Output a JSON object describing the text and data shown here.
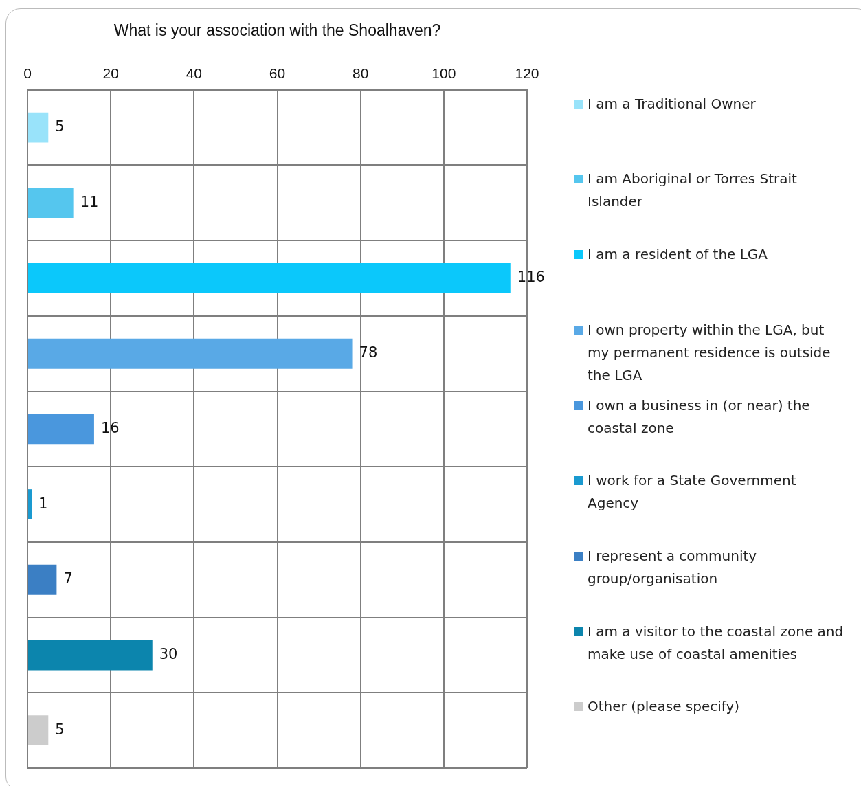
{
  "chart_data": {
    "type": "bar",
    "orientation": "horizontal",
    "title": "What is your association with the Shoalhaven?",
    "categories": [
      null,
      null,
      null,
      null,
      null,
      null,
      null,
      null,
      null
    ],
    "series": [
      {
        "name": "I am a Traditional Owner",
        "color": "#99e3fa",
        "values": [
          5,
          null,
          null,
          null,
          null,
          null,
          null,
          null,
          null
        ]
      },
      {
        "name": "I am Aboriginal or Torres Strait Islander",
        "color": "#55c6ee",
        "values": [
          null,
          11,
          null,
          null,
          null,
          null,
          null,
          null,
          null
        ]
      },
      {
        "name": "I am a resident of the LGA",
        "color": "#0bc8fb",
        "values": [
          null,
          null,
          116,
          null,
          null,
          null,
          null,
          null,
          null
        ]
      },
      {
        "name": "I own property within the LGA, but my permanent residence is outside the LGA",
        "color": "#59a9e6",
        "values": [
          null,
          null,
          null,
          78,
          null,
          null,
          null,
          null,
          null
        ]
      },
      {
        "name": "I own a business in (or near) the coastal zone",
        "color": "#4a97dd",
        "values": [
          null,
          null,
          null,
          null,
          16,
          null,
          null,
          null,
          null
        ]
      },
      {
        "name": "I work for a State Government Agency",
        "color": "#1a9ad0",
        "values": [
          null,
          null,
          null,
          null,
          null,
          1,
          null,
          null,
          null
        ]
      },
      {
        "name": "I represent a community group/organisation",
        "color": "#3b7fc4",
        "values": [
          null,
          null,
          null,
          null,
          null,
          null,
          7,
          null,
          null
        ]
      },
      {
        "name": "I am a visitor to the coastal zone and make use of coastal amenities",
        "color": "#0c85ad",
        "values": [
          null,
          null,
          null,
          null,
          null,
          null,
          null,
          30,
          null
        ]
      },
      {
        "name": "Other (please specify)",
        "color": "#cccccc",
        "values": [
          null,
          null,
          null,
          null,
          null,
          null,
          null,
          null,
          5
        ]
      }
    ],
    "xlim": [
      0,
      120
    ],
    "xticks": [
      0,
      20,
      40,
      60,
      80,
      100,
      120
    ],
    "grid": true,
    "legend": "right",
    "data_labels": true
  }
}
